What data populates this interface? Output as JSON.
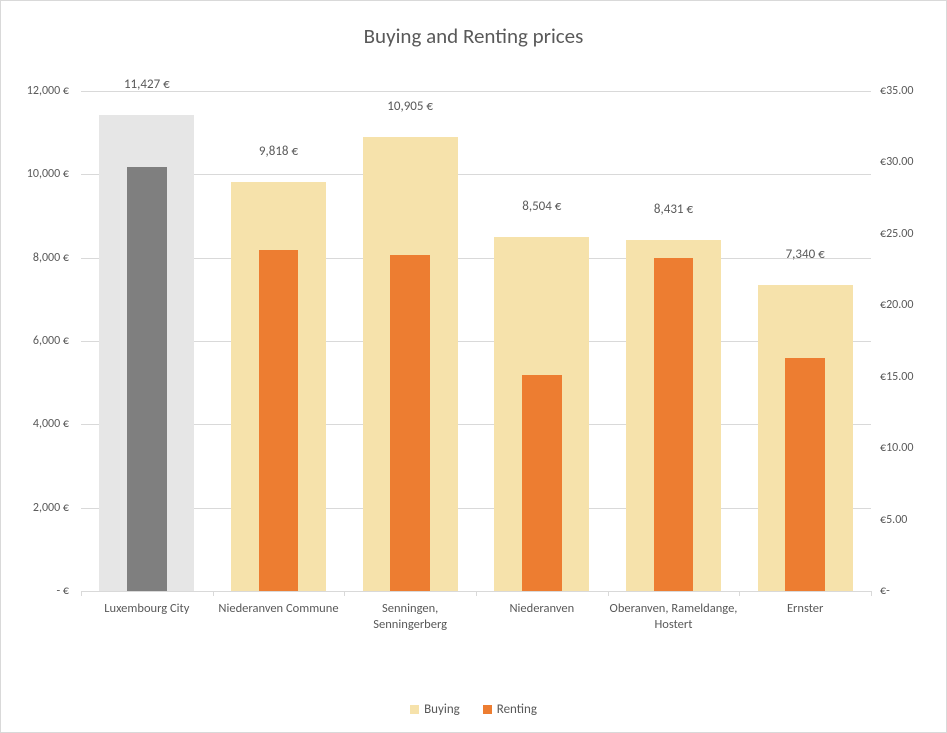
{
  "chart": {
    "title": "Buying and Renting prices",
    "title_fontsize": 21,
    "title_color": "#595959",
    "background_color": "#ffffff",
    "border_color": "#d9d9d9",
    "grid_color": "#d9d9d9",
    "label_color": "#595959",
    "label_fontsize": 12,
    "data_label_fontsize": 13,
    "type": "bar_dual_axis",
    "categories": [
      "Luxembourg City",
      "Niederanven Commune",
      "Senningen, Senningerberg",
      "Niederanven",
      "Oberanven, Rameldange, Hostert",
      "Ernster"
    ],
    "series": {
      "buying": {
        "label": "Buying",
        "axis": "left",
        "values": [
          11427,
          9818,
          10905,
          8504,
          8431,
          7340
        ],
        "show_data_labels": true,
        "data_labels": [
          "11,427 €",
          "9,818 €",
          "10,905 €",
          "8,504 €",
          "8,431 €",
          "7,340 €"
        ],
        "colors": [
          "#e6e6e6",
          "#f6e2ab",
          "#f6e2ab",
          "#f6e2ab",
          "#f6e2ab",
          "#f6e2ab"
        ],
        "bar_width_fraction": 0.72
      },
      "renting": {
        "label": "Renting",
        "axis": "right",
        "values": [
          29.7,
          23.9,
          23.5,
          15.1,
          23.3,
          16.3
        ],
        "show_data_labels": false,
        "colors": [
          "#7f7f7f",
          "#ed7d31",
          "#ed7d31",
          "#ed7d31",
          "#ed7d31",
          "#ed7d31"
        ],
        "bar_width_fraction": 0.3
      }
    },
    "left_axis": {
      "min": 0,
      "max": 12000,
      "step": 2000,
      "ticks": [
        " -   €",
        " 2,000 €",
        " 4,000 €",
        " 6,000 €",
        " 8,000 €",
        " 10,000 €",
        " 12,000 €"
      ]
    },
    "right_axis": {
      "min": 0,
      "max": 35,
      "step": 5,
      "ticks": [
        " €-",
        " €5.00",
        " €10.00",
        " €15.00",
        " €20.00",
        " €25.00",
        " €30.00",
        " €35.00"
      ]
    },
    "legend": {
      "buying_color": "#f6e2ab",
      "renting_color": "#ed7d31"
    }
  }
}
